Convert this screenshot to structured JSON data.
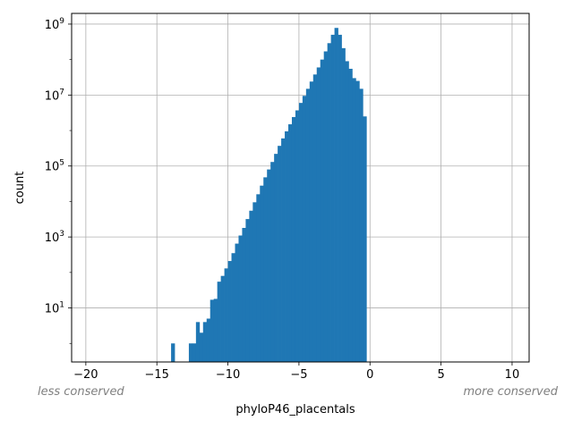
{
  "chart_data": {
    "type": "bar",
    "title": "",
    "xlabel": "phyloP46_placentals",
    "ylabel": "count",
    "xlim": [
      -21,
      11.2
    ],
    "ylim": [
      0.3,
      2000000000
    ],
    "yscale": "log",
    "grid": true,
    "bar_color": "#1f77b4",
    "grid_color": "#b0b0b0",
    "x_ticks": [
      -20,
      -15,
      -10,
      -5,
      0,
      5,
      10
    ],
    "x_tick_labels": [
      "−20",
      "−15",
      "−10",
      "−5",
      "0",
      "5",
      "10"
    ],
    "y_ticks": [
      10,
      1000,
      100000,
      10000000,
      1000000000
    ],
    "y_tick_labels": [
      {
        "base": "10",
        "exp": "1"
      },
      {
        "base": "10",
        "exp": "3"
      },
      {
        "base": "10",
        "exp": "5"
      },
      {
        "base": "10",
        "exp": "7"
      },
      {
        "base": "10",
        "exp": "9"
      }
    ],
    "bin_edges_start": -14.0,
    "bin_width": 0.25,
    "values": [
      1,
      0,
      0,
      0,
      0,
      1,
      1,
      4,
      2,
      4,
      5,
      17,
      18,
      55,
      80,
      130,
      210,
      350,
      650,
      1100,
      1800,
      3200,
      5500,
      9500,
      16000,
      28000,
      48000,
      80000,
      130000,
      220000,
      370000,
      600000,
      950000,
      1500000,
      2400000,
      3700000,
      6000000,
      9500000,
      15000000,
      24000000,
      38000000,
      60000000,
      100000000,
      170000000,
      290000000,
      500000000,
      780000000,
      500000000,
      210000000,
      90000000,
      55000000,
      30000000,
      25000000,
      15000000,
      2500000
    ]
  },
  "annotations": {
    "left_note": "less conserved",
    "right_note": "more conserved"
  }
}
